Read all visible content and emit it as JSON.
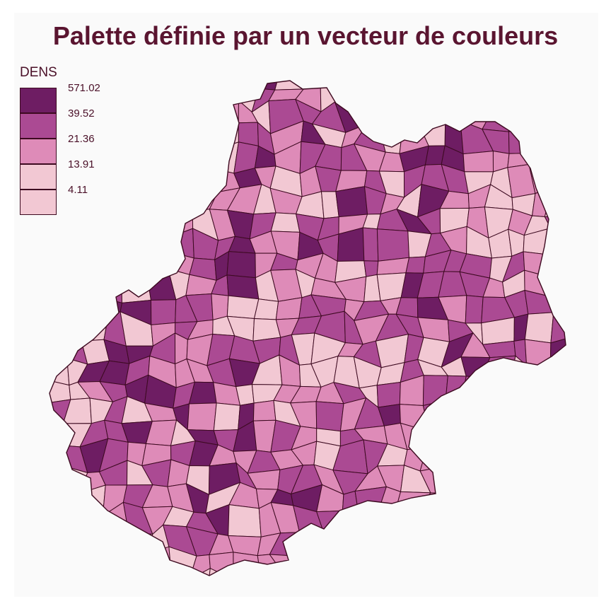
{
  "title": "Palette définie par un vecteur de couleurs",
  "legend": {
    "title": "DENS",
    "classes": [
      {
        "label": "571.02",
        "color": "#6e1d63"
      },
      {
        "label": "39.52",
        "color": "#ab4a93"
      },
      {
        "label": "21.36",
        "color": "#de8bb8"
      },
      {
        "label": "13.91",
        "color": "#f2c8d3"
      },
      {
        "label": "4.11",
        "color": "#f2c8d3"
      }
    ]
  },
  "colors": {
    "border": "#3d0a20",
    "background": "#fafafa",
    "title": "#5a1530"
  }
}
